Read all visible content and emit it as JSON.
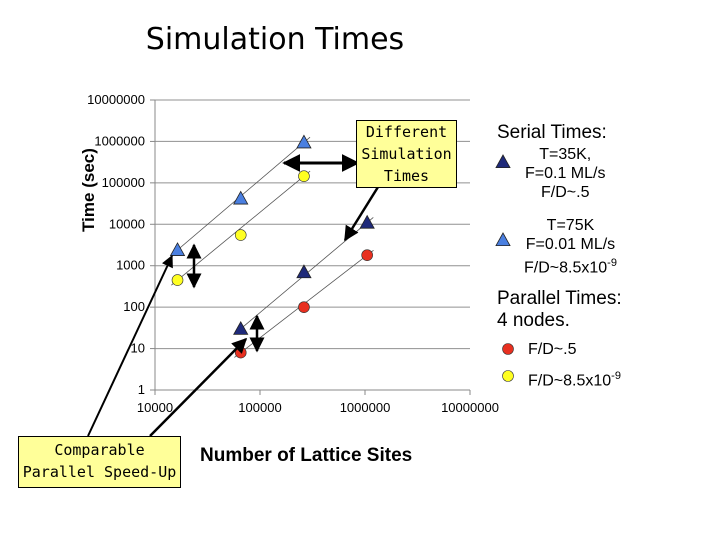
{
  "title": "Simulation Times",
  "chart_data": {
    "type": "scatter",
    "title": "Simulation Times",
    "xlabel": "Number of Lattice Sites",
    "ylabel": "Time (sec)",
    "xscale": "log",
    "yscale": "log",
    "xlim": [
      10000,
      10000000
    ],
    "ylim": [
      1,
      10000000
    ],
    "x_ticks": [
      "10000",
      "100000",
      "1000000",
      "10000000"
    ],
    "y_ticks": [
      "1",
      "10",
      "100",
      "1000",
      "10000",
      "100000",
      "1000000",
      "10000000"
    ],
    "series": [
      {
        "name": "Serial Times: T=35K, F=0.1 ML/s, F/D~.5",
        "marker": "triangle",
        "color": "#1f2a7a",
        "x": [
          65536,
          262144,
          1048576
        ],
        "y": [
          30,
          700,
          11000
        ]
      },
      {
        "name": "Serial Times: T=75K, F=0.01 ML/s, F/D~8.5x10-9",
        "marker": "triangle",
        "color": "#4a7fe0",
        "x": [
          16384,
          65536,
          262144
        ],
        "y": [
          2400,
          42000,
          950000
        ]
      },
      {
        "name": "Parallel Times: 4 nodes. F/D~.5",
        "marker": "circle",
        "color": "#e83020",
        "x": [
          65536,
          262144,
          1048576
        ],
        "y": [
          8,
          100,
          1800
        ]
      },
      {
        "name": "Parallel Times: 4 nodes. F/D~8.5x10-9",
        "marker": "circle",
        "color": "#ffff22",
        "x": [
          16384,
          65536,
          262144
        ],
        "y": [
          450,
          5500,
          145000
        ]
      }
    ]
  },
  "legend": {
    "serial_heading": "Serial Times:",
    "serial1_lines": [
      "T=35K,",
      "F=0.1 ML/s",
      "F/D~.5"
    ],
    "serial2_lines": [
      "T=75K",
      "F=0.01 ML/s"
    ],
    "serial2_fd_prefix": "F/D~8.5x10",
    "serial2_fd_exp": "-9",
    "parallel_heading_lines": [
      "Parallel Times:",
      "4 nodes."
    ],
    "parallel1": "F/D~.5",
    "parallel2_prefix": "F/D~8.5x10",
    "parallel2_exp": "-9"
  },
  "callouts": {
    "different_lines": [
      "Different",
      "Simulation",
      "Times"
    ],
    "comparable_lines": [
      "Comparable",
      "Parallel Speed-Up"
    ]
  },
  "colors": {
    "serial_dark": "#1f2a7a",
    "serial_light": "#4a7fe0",
    "parallel_red": "#e83020",
    "parallel_yellow": "#ffff22",
    "callout_fill": "#ffff99"
  }
}
